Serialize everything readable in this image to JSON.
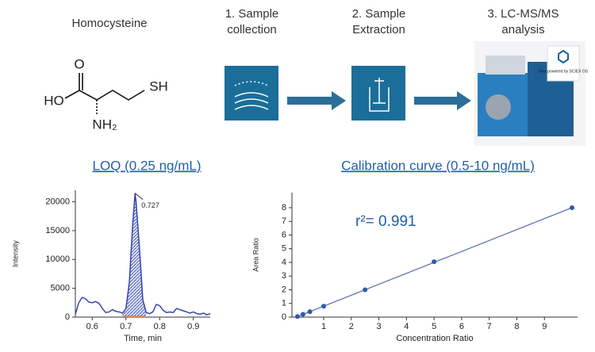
{
  "workflow": {
    "molecule": {
      "name": "Homocysteine",
      "atoms": [
        "O",
        "HO",
        "SH",
        "NH₂"
      ]
    },
    "steps": [
      "1. Sample collection",
      "2. Sample Extraction",
      "3. LC-MS/MS analysis"
    ],
    "instrument_badge": "Now powered by SCIEX OS"
  },
  "chart_data": [
    {
      "type": "line",
      "title": "LOQ (0.25 ng/mL)",
      "x_label": "Time, min",
      "y_label": "Intensity",
      "x": [
        0.55,
        0.56,
        0.57,
        0.58,
        0.59,
        0.6,
        0.61,
        0.62,
        0.63,
        0.64,
        0.65,
        0.66,
        0.67,
        0.68,
        0.69,
        0.7,
        0.71,
        0.72,
        0.727,
        0.73,
        0.74,
        0.75,
        0.76,
        0.77,
        0.78,
        0.79,
        0.8,
        0.81,
        0.82,
        0.83,
        0.84,
        0.85,
        0.86,
        0.87,
        0.88,
        0.89,
        0.9,
        0.91,
        0.92,
        0.93,
        0.94,
        0.95
      ],
      "values": [
        500,
        2500,
        3400,
        3200,
        2600,
        2500,
        2700,
        2400,
        1500,
        800,
        900,
        1300,
        1000,
        900,
        700,
        1500,
        6000,
        16000,
        21500,
        20000,
        12000,
        3000,
        800,
        600,
        900,
        2200,
        2000,
        1200,
        800,
        900,
        800,
        1500,
        1300,
        1100,
        900,
        700,
        900,
        600,
        500,
        700,
        400,
        600
      ],
      "color": "#3346a8",
      "shaded_range": [
        0.69,
        0.76
      ],
      "annotation": {
        "x": 0.727,
        "y": 21500,
        "text": "0.727"
      },
      "xlim": [
        0.55,
        0.95
      ],
      "ylim": [
        0,
        22000
      ],
      "xticks": [
        0.6,
        0.7,
        0.8,
        0.9
      ],
      "yticks": [
        0,
        5000,
        10000,
        15000,
        20000
      ]
    },
    {
      "type": "scatter",
      "title": "Calibration curve (0.5-10 ng/mL)",
      "x_label": "Concentration Ratio",
      "y_label": "Area Ratio",
      "x": [
        0.05,
        0.25,
        0.5,
        1,
        2.5,
        5,
        10
      ],
      "values": [
        0.04,
        0.2,
        0.4,
        0.8,
        2,
        4.05,
        8
      ],
      "color": "#2e5aa8",
      "fit_line": {
        "x": [
          0,
          10
        ],
        "values": [
          0,
          8
        ],
        "color": "#5566b0"
      },
      "annotation": "r²= 0.991",
      "xlim": [
        -0.15,
        10.2
      ],
      "ylim": [
        0,
        9.1
      ],
      "xticks": [
        1,
        2,
        3,
        4,
        5,
        6,
        7,
        8,
        9
      ],
      "yticks": [
        0,
        1,
        2,
        3,
        4,
        5,
        6,
        7,
        8
      ]
    }
  ]
}
